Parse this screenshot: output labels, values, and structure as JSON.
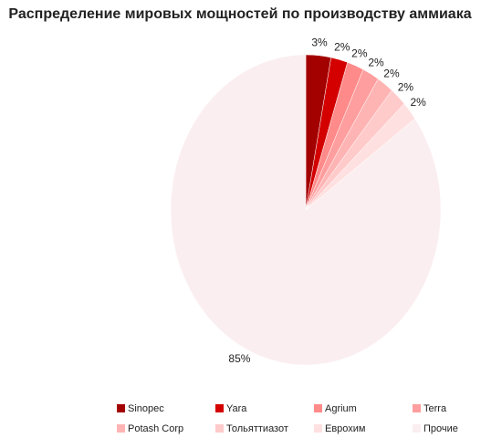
{
  "chart_data": {
    "type": "pie",
    "title": "Распределение мировых мощностей по производству аммиака",
    "categories": [
      "Sinopec",
      "Yara",
      "Agrium",
      "Terra",
      "Potash Corp",
      "Тольяттиазот",
      "Еврохим",
      "Прочие"
    ],
    "values": [
      3,
      2,
      2,
      2,
      2,
      2,
      2,
      85
    ],
    "value_labels": [
      "3%",
      "2%",
      "2%",
      "2%",
      "2%",
      "2%",
      "2%",
      "85%"
    ],
    "colors": [
      "#a30000",
      "#d40000",
      "#ff8a8a",
      "#ff9e9e",
      "#ffb4b4",
      "#ffcaca",
      "#ffe0e0",
      "#fbeef0"
    ]
  }
}
